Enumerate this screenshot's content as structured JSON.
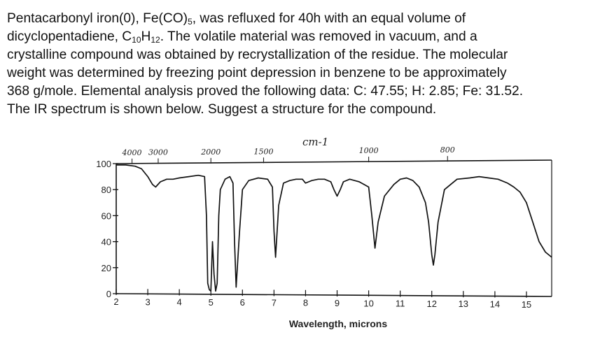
{
  "question": {
    "line1": "Pentacarbonyl iron(0), Fe(CO)",
    "line1_sub": "5",
    "line1_end": ", was refluxed for 40h with an equal volume of",
    "line2": "dicyclopentadiene, C",
    "line2_sub1": "10",
    "line2_mid": "H",
    "line2_sub2": "12",
    "line2_end": ".  The volatile material was removed in vacuum, and a",
    "line3": "crystalline compound was obtained by recrystallization of the residue.  The molecular",
    "line4": "weight was determined by freezing point depression in benzene to be approximately",
    "line5": "368 g/mole.  Elemental analysis proved the following data: C: 47.55; H: 2.85; Fe: 31.52.",
    "line6": "The IR spectrum is shown below.  Suggest a structure for the compound."
  },
  "chart_data": {
    "type": "line",
    "title": "",
    "xlabel": "Wavelength, microns",
    "ylabel": "",
    "top_axis_unit": "cm-1",
    "xlim": [
      2,
      15.8
    ],
    "ylim": [
      0,
      100
    ],
    "x_ticks": [
      "2",
      "3",
      "4",
      "5",
      "6",
      "7",
      "8",
      "9",
      "10",
      "11",
      "12",
      "13",
      "14",
      "15"
    ],
    "y_ticks": [
      "0",
      "20",
      "40",
      "60",
      "80",
      "100"
    ],
    "top_ticks": [
      {
        "label": "4000",
        "microns": 2.5
      },
      {
        "label": "3000",
        "microns": 3.33
      },
      {
        "label": "2000",
        "microns": 5.0
      },
      {
        "label": "1500",
        "microns": 6.67
      },
      {
        "label": "1000",
        "microns": 10.0
      },
      {
        "label": "800",
        "microns": 12.5
      }
    ],
    "grid": false,
    "series": [
      {
        "color": "#111111",
        "x": [
          2.0,
          2.3,
          2.6,
          2.8,
          3.0,
          3.15,
          3.25,
          3.4,
          3.6,
          3.8,
          4.0,
          4.3,
          4.6,
          4.8,
          4.86,
          4.9,
          4.95,
          5.0,
          5.05,
          5.1,
          5.15,
          5.2,
          5.25,
          5.3,
          5.45,
          5.6,
          5.7,
          5.75,
          5.8,
          5.9,
          6.0,
          6.2,
          6.5,
          6.8,
          6.95,
          7.0,
          7.05,
          7.15,
          7.3,
          7.5,
          7.7,
          7.9,
          8.0,
          8.1,
          8.2,
          8.4,
          8.6,
          8.8,
          8.9,
          9.0,
          9.1,
          9.2,
          9.4,
          9.7,
          10.0,
          10.1,
          10.2,
          10.3,
          10.5,
          10.8,
          11.0,
          11.2,
          11.4,
          11.6,
          11.8,
          11.9,
          12.0,
          12.05,
          12.1,
          12.2,
          12.4,
          12.8,
          13.2,
          13.5,
          13.8,
          14.1,
          14.4,
          14.6,
          14.8,
          15.0,
          15.2,
          15.4,
          15.6,
          15.8
        ],
        "y": [
          99,
          99,
          98,
          96,
          90,
          84,
          82,
          86,
          88,
          88,
          89,
          90,
          91,
          90,
          60,
          8,
          3,
          2,
          40,
          15,
          2,
          8,
          60,
          80,
          88,
          90,
          85,
          40,
          5,
          45,
          80,
          87,
          89,
          88,
          82,
          48,
          28,
          68,
          85,
          87,
          88,
          88,
          85,
          86,
          87,
          88,
          88,
          86,
          80,
          75,
          80,
          86,
          88,
          86,
          82,
          60,
          35,
          55,
          75,
          84,
          88,
          89,
          87,
          82,
          70,
          55,
          30,
          22,
          30,
          55,
          80,
          88,
          89,
          90,
          89,
          88,
          85,
          82,
          78,
          70,
          55,
          40,
          32,
          28
        ]
      }
    ]
  }
}
